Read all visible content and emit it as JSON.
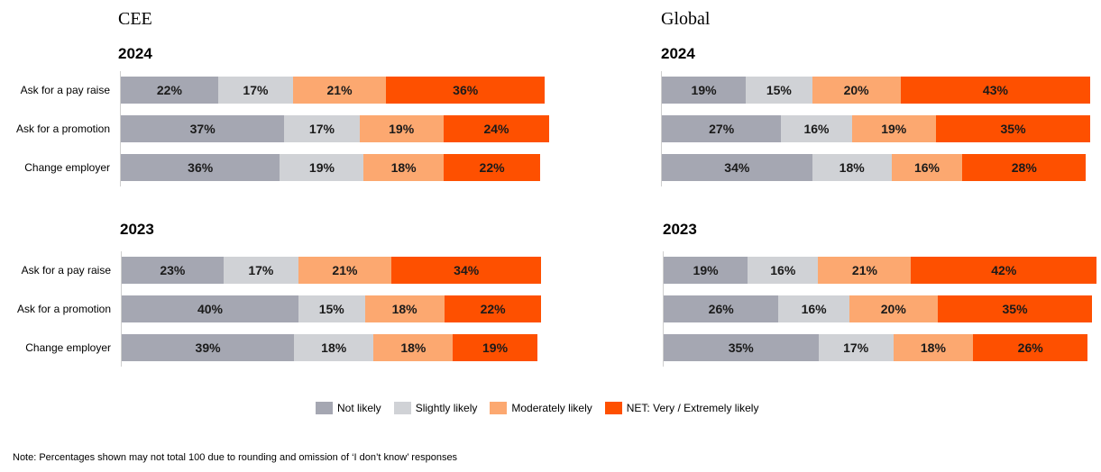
{
  "legend": [
    {
      "name": "Not likely",
      "color": "#a5a7b2"
    },
    {
      "name": "Slightly likely",
      "color": "#d0d2d6"
    },
    {
      "name": "Moderately likely",
      "color": "#fca870"
    },
    {
      "name": "NET: Very / Extremely likely",
      "color": "#fe5000"
    }
  ],
  "note": "Note: Percentages shown may not total 100 due to rounding and omission of ‘I don’t know’ responses",
  "chart_data": [
    {
      "type": "bar",
      "stacked": true,
      "orientation": "horizontal",
      "region": "CEE",
      "year": "2024",
      "categories": [
        "Ask for a pay raise",
        "Ask for a promotion",
        "Change employer"
      ],
      "series": [
        {
          "name": "Not likely",
          "values": [
            22,
            37,
            36
          ]
        },
        {
          "name": "Slightly likely",
          "values": [
            17,
            17,
            19
          ]
        },
        {
          "name": "Moderately likely",
          "values": [
            21,
            19,
            18
          ]
        },
        {
          "name": "NET: Very / Extremely likely",
          "values": [
            36,
            24,
            22
          ]
        }
      ]
    },
    {
      "type": "bar",
      "stacked": true,
      "orientation": "horizontal",
      "region": "Global",
      "year": "2024",
      "categories": [
        "Ask for a pay raise",
        "Ask for a promotion",
        "Change employer"
      ],
      "series": [
        {
          "name": "Not likely",
          "values": [
            19,
            27,
            34
          ]
        },
        {
          "name": "Slightly likely",
          "values": [
            15,
            16,
            18
          ]
        },
        {
          "name": "Moderately likely",
          "values": [
            20,
            19,
            16
          ]
        },
        {
          "name": "NET: Very / Extremely likely",
          "values": [
            43,
            35,
            28
          ]
        }
      ]
    },
    {
      "type": "bar",
      "stacked": true,
      "orientation": "horizontal",
      "region": "CEE",
      "year": "2023",
      "categories": [
        "Ask for a pay raise",
        "Ask for a promotion",
        "Change employer"
      ],
      "series": [
        {
          "name": "Not likely",
          "values": [
            23,
            40,
            39
          ]
        },
        {
          "name": "Slightly likely",
          "values": [
            17,
            15,
            18
          ]
        },
        {
          "name": "Moderately likely",
          "values": [
            21,
            18,
            18
          ]
        },
        {
          "name": "NET: Very / Extremely likely",
          "values": [
            34,
            22,
            19
          ]
        }
      ]
    },
    {
      "type": "bar",
      "stacked": true,
      "orientation": "horizontal",
      "region": "Global",
      "year": "2023",
      "categories": [
        "Ask for a pay raise",
        "Ask for a promotion",
        "Change employer"
      ],
      "series": [
        {
          "name": "Not likely",
          "values": [
            19,
            26,
            35
          ]
        },
        {
          "name": "Slightly likely",
          "values": [
            16,
            16,
            17
          ]
        },
        {
          "name": "Moderately likely",
          "values": [
            21,
            20,
            18
          ]
        },
        {
          "name": "NET: Very / Extremely likely",
          "values": [
            42,
            35,
            26
          ]
        }
      ]
    }
  ]
}
